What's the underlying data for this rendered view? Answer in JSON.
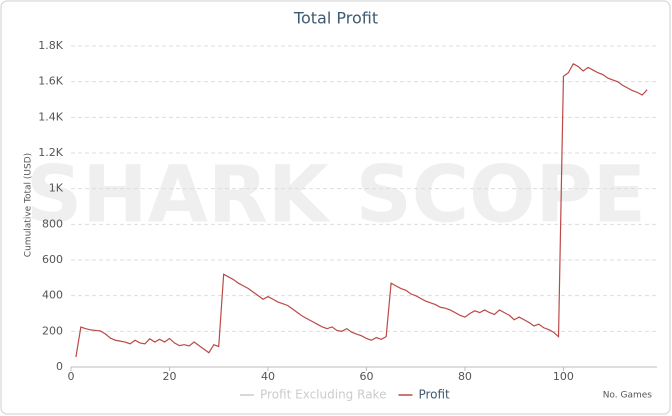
{
  "chart_data": {
    "type": "line",
    "title": "Total Profit",
    "watermark": "SHARK SCOPE",
    "x_label": "No. Games",
    "y_label": "Cumulative Total (USD)",
    "x": [
      1,
      2,
      3,
      4,
      5,
      6,
      7,
      8,
      9,
      10,
      11,
      12,
      13,
      14,
      15,
      16,
      17,
      18,
      19,
      20,
      21,
      22,
      23,
      24,
      25,
      26,
      27,
      28,
      29,
      30,
      31,
      32,
      33,
      34,
      35,
      36,
      37,
      38,
      39,
      40,
      41,
      42,
      43,
      44,
      45,
      46,
      47,
      48,
      49,
      50,
      51,
      52,
      53,
      54,
      55,
      56,
      57,
      58,
      59,
      60,
      61,
      62,
      63,
      64,
      65,
      66,
      67,
      68,
      69,
      70,
      71,
      72,
      73,
      74,
      75,
      76,
      77,
      78,
      79,
      80,
      81,
      82,
      83,
      84,
      85,
      86,
      87,
      88,
      89,
      90,
      91,
      92,
      93,
      94,
      95,
      96,
      97,
      98,
      99,
      100,
      101,
      102,
      103,
      104,
      105,
      106,
      107,
      108,
      109,
      110,
      111,
      112,
      113,
      114,
      115,
      116,
      117
    ],
    "series": [
      {
        "name": "Profit",
        "color": "#b94a48",
        "values": [
          56,
          224,
          215,
          208,
          205,
          202,
          185,
          162,
          150,
          145,
          140,
          130,
          150,
          135,
          130,
          158,
          140,
          155,
          140,
          160,
          135,
          120,
          125,
          118,
          140,
          120,
          100,
          80,
          125,
          115,
          520,
          505,
          490,
          470,
          455,
          440,
          420,
          400,
          380,
          395,
          380,
          365,
          355,
          345,
          325,
          305,
          285,
          270,
          255,
          240,
          225,
          215,
          225,
          205,
          200,
          215,
          195,
          185,
          175,
          160,
          150,
          165,
          155,
          170,
          470,
          455,
          440,
          430,
          410,
          400,
          385,
          370,
          360,
          350,
          335,
          330,
          320,
          305,
          290,
          280,
          300,
          315,
          305,
          320,
          305,
          295,
          320,
          305,
          290,
          265,
          280,
          265,
          250,
          230,
          240,
          220,
          210,
          195,
          170,
          1630,
          1650,
          1700,
          1685,
          1660,
          1680,
          1665,
          1650,
          1640,
          1620,
          1610,
          1600,
          1580,
          1565,
          1550,
          1540,
          1525,
          1555
        ]
      }
    ],
    "legend": [
      {
        "name": "Profit Excluding Rake",
        "color": "#cccccc"
      },
      {
        "name": "Profit",
        "color": "#b94a48"
      }
    ],
    "xlim": [
      0,
      119
    ],
    "xticks": [
      0,
      20,
      40,
      60,
      80,
      100
    ],
    "ylim": [
      0,
      1800
    ],
    "yticks": [
      0,
      200,
      400,
      600,
      800,
      {
        "value": 1000,
        "label": "1K"
      },
      {
        "value": 1200,
        "label": "1.2K"
      },
      {
        "value": 1400,
        "label": "1.4K"
      },
      {
        "value": 1600,
        "label": "1.6K"
      },
      {
        "value": 1800,
        "label": "1.8K"
      }
    ],
    "grid": true
  }
}
